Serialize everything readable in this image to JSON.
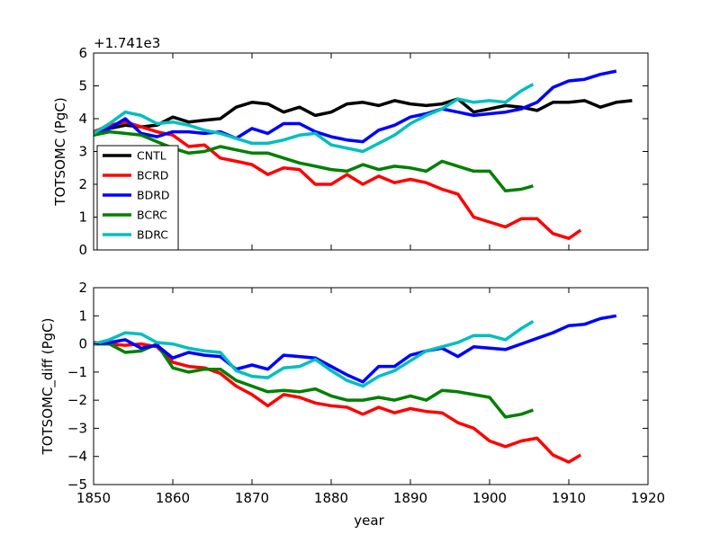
{
  "figure": {
    "xlabel": "year",
    "xticks": [
      1850,
      1860,
      1870,
      1880,
      1890,
      1900,
      1910,
      1920
    ]
  },
  "chart_data": [
    {
      "type": "line",
      "panel": "top",
      "ylabel": "TOTSOMC (PgC)",
      "offset_text": "+1.741e3",
      "xlim": [
        1850,
        1920
      ],
      "ylim": [
        0,
        6
      ],
      "yticks": [
        0,
        1,
        2,
        3,
        4,
        5,
        6
      ],
      "legend_placement": "lower-left",
      "series": [
        {
          "name": "CNTL",
          "color": "#000000",
          "x": [
            1850,
            1852,
            1854,
            1856,
            1858,
            1860,
            1862,
            1864,
            1866,
            1868,
            1870,
            1872,
            1874,
            1876,
            1878,
            1880,
            1882,
            1884,
            1886,
            1888,
            1890,
            1892,
            1894,
            1896,
            1898,
            1900,
            1902,
            1904,
            1906,
            1908,
            1910,
            1912,
            1914,
            1916,
            1918
          ],
          "y": [
            3.55,
            3.7,
            3.8,
            3.75,
            3.8,
            4.05,
            3.9,
            3.95,
            4.0,
            4.35,
            4.5,
            4.45,
            4.2,
            4.35,
            4.1,
            4.2,
            4.45,
            4.5,
            4.4,
            4.55,
            4.45,
            4.4,
            4.45,
            4.6,
            4.2,
            4.3,
            4.4,
            4.35,
            4.25,
            4.5,
            4.5,
            4.55,
            4.35,
            4.5,
            4.55
          ]
        },
        {
          "name": "BCRD",
          "color": "#ff0000",
          "x": [
            1850,
            1852,
            1854,
            1856,
            1858,
            1860,
            1862,
            1864,
            1866,
            1868,
            1870,
            1872,
            1874,
            1876,
            1878,
            1880,
            1882,
            1884,
            1886,
            1888,
            1890,
            1892,
            1894,
            1896,
            1898,
            1900,
            1902,
            1904,
            1906,
            1908,
            1910,
            1911.5
          ],
          "y": [
            3.6,
            3.8,
            3.9,
            3.75,
            3.6,
            3.5,
            3.15,
            3.2,
            2.8,
            2.7,
            2.6,
            2.3,
            2.5,
            2.45,
            2.0,
            2.0,
            2.3,
            2.0,
            2.25,
            2.05,
            2.15,
            2.05,
            1.85,
            1.7,
            1.0,
            0.85,
            0.7,
            0.95,
            0.95,
            0.5,
            0.35,
            0.6
          ]
        },
        {
          "name": "BDRD",
          "color": "#0000ff",
          "x": [
            1850,
            1852,
            1854,
            1856,
            1858,
            1860,
            1862,
            1864,
            1866,
            1868,
            1870,
            1872,
            1874,
            1876,
            1878,
            1880,
            1882,
            1884,
            1886,
            1888,
            1890,
            1892,
            1894,
            1896,
            1898,
            1900,
            1902,
            1904,
            1906,
            1908,
            1910,
            1912,
            1914,
            1916
          ],
          "y": [
            3.5,
            3.7,
            4.0,
            3.55,
            3.45,
            3.6,
            3.6,
            3.55,
            3.6,
            3.4,
            3.7,
            3.55,
            3.85,
            3.85,
            3.6,
            3.45,
            3.35,
            3.3,
            3.65,
            3.8,
            4.05,
            4.15,
            4.3,
            4.2,
            4.1,
            4.15,
            4.2,
            4.3,
            4.5,
            4.95,
            5.15,
            5.2,
            5.35,
            5.45
          ]
        },
        {
          "name": "BCRC",
          "color": "#008000",
          "x": [
            1850,
            1852,
            1854,
            1856,
            1858,
            1860,
            1862,
            1864,
            1866,
            1868,
            1870,
            1872,
            1874,
            1876,
            1878,
            1880,
            1882,
            1884,
            1886,
            1888,
            1890,
            1892,
            1894,
            1896,
            1898,
            1900,
            1902,
            1904,
            1905.5
          ],
          "y": [
            3.5,
            3.6,
            3.55,
            3.5,
            3.3,
            3.1,
            2.95,
            3.0,
            3.15,
            3.05,
            2.95,
            2.95,
            2.8,
            2.65,
            2.55,
            2.45,
            2.4,
            2.6,
            2.45,
            2.55,
            2.5,
            2.4,
            2.7,
            2.55,
            2.4,
            2.4,
            1.8,
            1.85,
            1.95
          ]
        },
        {
          "name": "BDRC",
          "color": "#00bfbf",
          "x": [
            1850,
            1852,
            1854,
            1856,
            1858,
            1860,
            1862,
            1864,
            1866,
            1868,
            1870,
            1872,
            1874,
            1876,
            1878,
            1880,
            1882,
            1884,
            1886,
            1888,
            1890,
            1892,
            1894,
            1896,
            1898,
            1900,
            1902,
            1904,
            1905.5
          ],
          "y": [
            3.55,
            3.85,
            4.2,
            4.1,
            3.85,
            3.9,
            3.8,
            3.65,
            3.55,
            3.4,
            3.25,
            3.25,
            3.35,
            3.5,
            3.55,
            3.2,
            3.1,
            3.0,
            3.25,
            3.5,
            3.85,
            4.1,
            4.3,
            4.6,
            4.5,
            4.55,
            4.5,
            4.85,
            5.05
          ]
        }
      ]
    },
    {
      "type": "line",
      "panel": "bottom",
      "ylabel": "TOTSOMC_diff (PgC)",
      "xlim": [
        1850,
        1920
      ],
      "ylim": [
        -5,
        2
      ],
      "yticks": [
        -5,
        -4,
        -3,
        -2,
        -1,
        0,
        1,
        2
      ],
      "series": [
        {
          "name": "BCRD",
          "color": "#ff0000",
          "x": [
            1850,
            1852,
            1854,
            1856,
            1858,
            1860,
            1862,
            1864,
            1866,
            1868,
            1870,
            1872,
            1874,
            1876,
            1878,
            1880,
            1882,
            1884,
            1886,
            1888,
            1890,
            1892,
            1894,
            1896,
            1898,
            1900,
            1902,
            1904,
            1906,
            1908,
            1910,
            1911.5
          ],
          "y": [
            0.05,
            0.0,
            -0.05,
            0.0,
            -0.1,
            -0.65,
            -0.8,
            -0.85,
            -1.05,
            -1.5,
            -1.8,
            -2.2,
            -1.8,
            -1.9,
            -2.1,
            -2.2,
            -2.25,
            -2.5,
            -2.25,
            -2.45,
            -2.3,
            -2.4,
            -2.45,
            -2.8,
            -3.0,
            -3.45,
            -3.65,
            -3.45,
            -3.35,
            -3.95,
            -4.2,
            -3.95
          ]
        },
        {
          "name": "BCRC",
          "color": "#008000",
          "x": [
            1850,
            1852,
            1854,
            1856,
            1858,
            1860,
            1862,
            1864,
            1866,
            1868,
            1870,
            1872,
            1874,
            1876,
            1878,
            1880,
            1882,
            1884,
            1886,
            1888,
            1890,
            1892,
            1894,
            1896,
            1898,
            1900,
            1902,
            1904,
            1905.5
          ],
          "y": [
            0.0,
            0.0,
            -0.3,
            -0.25,
            0.0,
            -0.85,
            -1.0,
            -0.9,
            -0.9,
            -1.3,
            -1.5,
            -1.7,
            -1.65,
            -1.7,
            -1.6,
            -1.85,
            -2.0,
            -2.0,
            -1.9,
            -2.0,
            -1.85,
            -2.0,
            -1.65,
            -1.7,
            -1.8,
            -1.9,
            -2.6,
            -2.5,
            -2.35
          ]
        },
        {
          "name": "BDRD",
          "color": "#0000ff",
          "x": [
            1850,
            1852,
            1854,
            1856,
            1858,
            1860,
            1862,
            1864,
            1866,
            1868,
            1870,
            1872,
            1874,
            1876,
            1878,
            1880,
            1882,
            1884,
            1886,
            1888,
            1890,
            1892,
            1894,
            1896,
            1898,
            1900,
            1902,
            1904,
            1906,
            1908,
            1910,
            1912,
            1914,
            1916
          ],
          "y": [
            0.0,
            0.05,
            0.15,
            -0.15,
            -0.05,
            -0.5,
            -0.3,
            -0.4,
            -0.45,
            -0.9,
            -0.75,
            -0.9,
            -0.4,
            -0.45,
            -0.5,
            -0.8,
            -1.1,
            -1.35,
            -0.8,
            -0.8,
            -0.4,
            -0.25,
            -0.15,
            -0.45,
            -0.1,
            -0.15,
            -0.2,
            0.0,
            0.2,
            0.4,
            0.65,
            0.7,
            0.9,
            1.0
          ]
        },
        {
          "name": "BDRC",
          "color": "#00bfbf",
          "x": [
            1850,
            1852,
            1854,
            1856,
            1858,
            1860,
            1862,
            1864,
            1866,
            1868,
            1870,
            1872,
            1874,
            1876,
            1878,
            1880,
            1882,
            1884,
            1886,
            1888,
            1890,
            1892,
            1894,
            1896,
            1898,
            1900,
            1902,
            1904,
            1905.5
          ],
          "y": [
            0.0,
            0.15,
            0.4,
            0.35,
            0.05,
            0.0,
            -0.15,
            -0.25,
            -0.3,
            -0.95,
            -1.15,
            -1.2,
            -0.85,
            -0.8,
            -0.55,
            -0.95,
            -1.3,
            -1.5,
            -1.15,
            -0.95,
            -0.6,
            -0.25,
            -0.1,
            0.05,
            0.3,
            0.3,
            0.15,
            0.55,
            0.8
          ]
        }
      ]
    }
  ]
}
